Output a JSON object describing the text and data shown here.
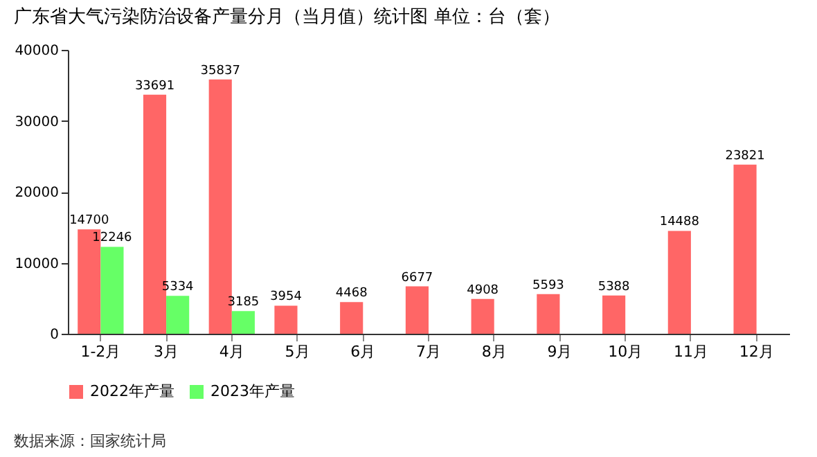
{
  "chart_data": {
    "type": "bar",
    "title": "广东省大气污染防治设备产量分月（当月值）统计图 单位：台（套）",
    "categories": [
      "1-2月",
      "3月",
      "4月",
      "5月",
      "6月",
      "7月",
      "8月",
      "9月",
      "10月",
      "11月",
      "12月"
    ],
    "series": [
      {
        "name": "2022年产量",
        "color": "#ff6666",
        "values": [
          14700,
          33691,
          35837,
          3954,
          4468,
          6677,
          4908,
          5593,
          5388,
          14488,
          23821
        ]
      },
      {
        "name": "2023年产量",
        "color": "#66ff66",
        "values": [
          12246,
          5334,
          3185,
          null,
          null,
          null,
          null,
          null,
          null,
          null,
          null
        ]
      }
    ],
    "ylim": [
      0,
      40000
    ],
    "yticks": [
      0,
      10000,
      20000,
      30000,
      40000
    ],
    "data_labels": true,
    "legend": "bottom",
    "grid": false,
    "annotations": [
      "数据来源：国家统计局"
    ]
  }
}
